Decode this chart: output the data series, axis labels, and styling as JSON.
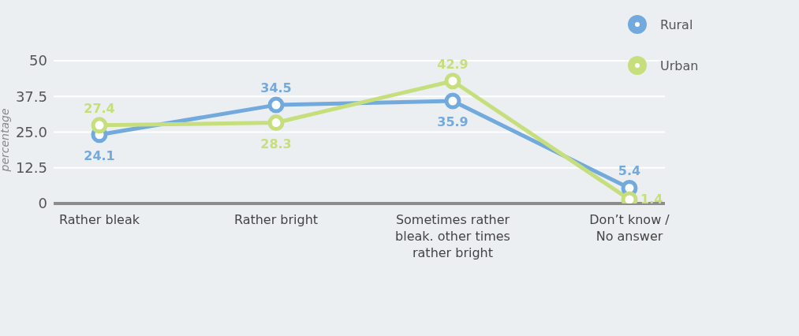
{
  "chart_data": {
    "type": "line",
    "ylabel": "percentage",
    "categories": [
      "Rather bleak",
      "Rather bright",
      "Sometimes rather bleak. other times rather bright",
      "Don’t know / No answer"
    ],
    "series": [
      {
        "name": "Rural",
        "color": "#72aadd",
        "values": [
          24.1,
          34.5,
          35.9,
          5.4
        ]
      },
      {
        "name": "Urban",
        "color": "#c6df7c",
        "values": [
          27.4,
          28.3,
          42.9,
          1.4
        ]
      }
    ],
    "ylim": [
      0,
      50
    ],
    "yticks": [
      0,
      12.5,
      {
        "value": 25,
        "label": "25.0"
      },
      37.5,
      50
    ],
    "grid": "y",
    "legend": "top right",
    "marker": "circle",
    "line_style": "solid",
    "data_labels": true
  }
}
